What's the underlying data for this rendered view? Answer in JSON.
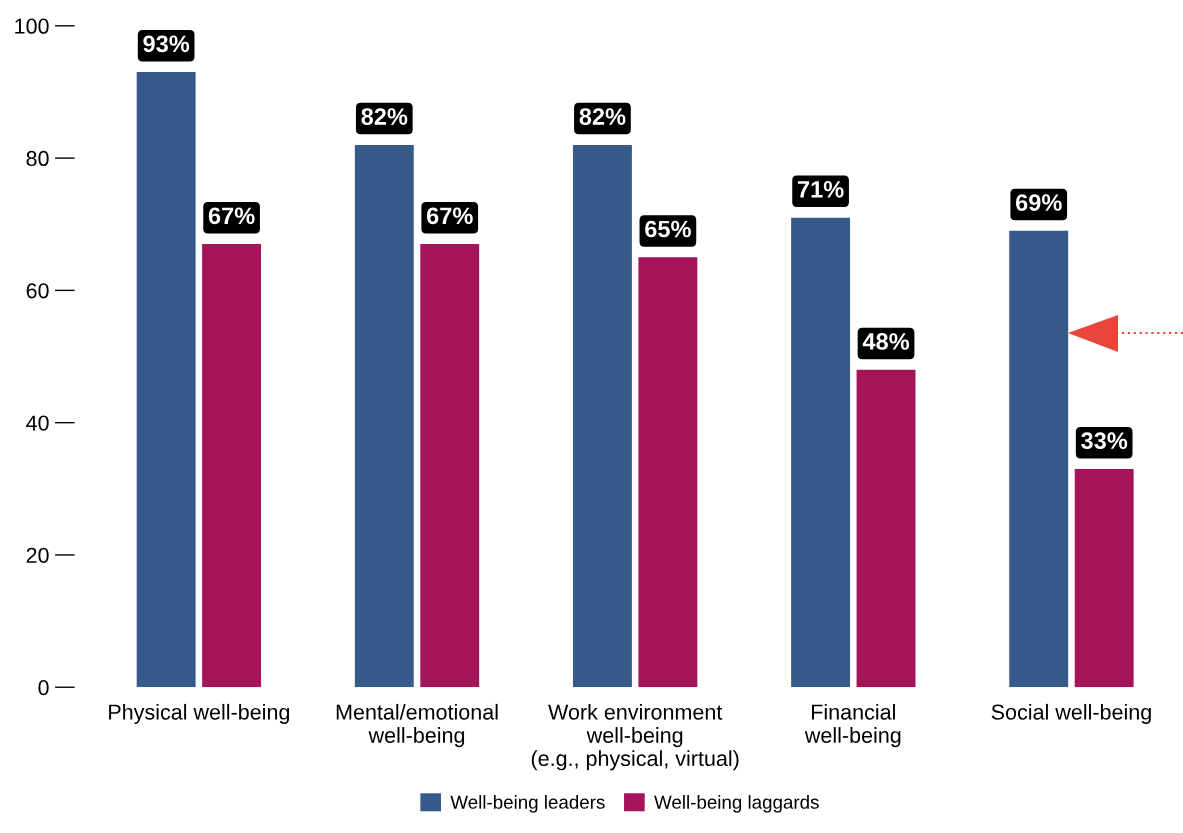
{
  "chart_data": {
    "type": "bar",
    "categories": [
      "Physical well-being",
      "Mental/emotional\nwell-being",
      "Work environment\nwell-being\n(e.g., physical, virtual)",
      "Financial\nwell-being",
      "Social well-being"
    ],
    "series": [
      {
        "name": "Well-being leaders",
        "color": "#365a8a",
        "values": [
          93,
          82,
          82,
          71,
          69
        ],
        "value_labels": [
          "93%",
          "82%",
          "82%",
          "71%",
          "69%"
        ]
      },
      {
        "name": "Well-being laggards",
        "color": "#a51359",
        "values": [
          67,
          67,
          65,
          48,
          33
        ],
        "value_labels": [
          "67%",
          "67%",
          "65%",
          "48%",
          "33%"
        ]
      }
    ],
    "ylim": [
      0,
      100
    ],
    "yticks": [
      0,
      20,
      40,
      60,
      80,
      100
    ],
    "grid": false,
    "legend": "bottom"
  }
}
